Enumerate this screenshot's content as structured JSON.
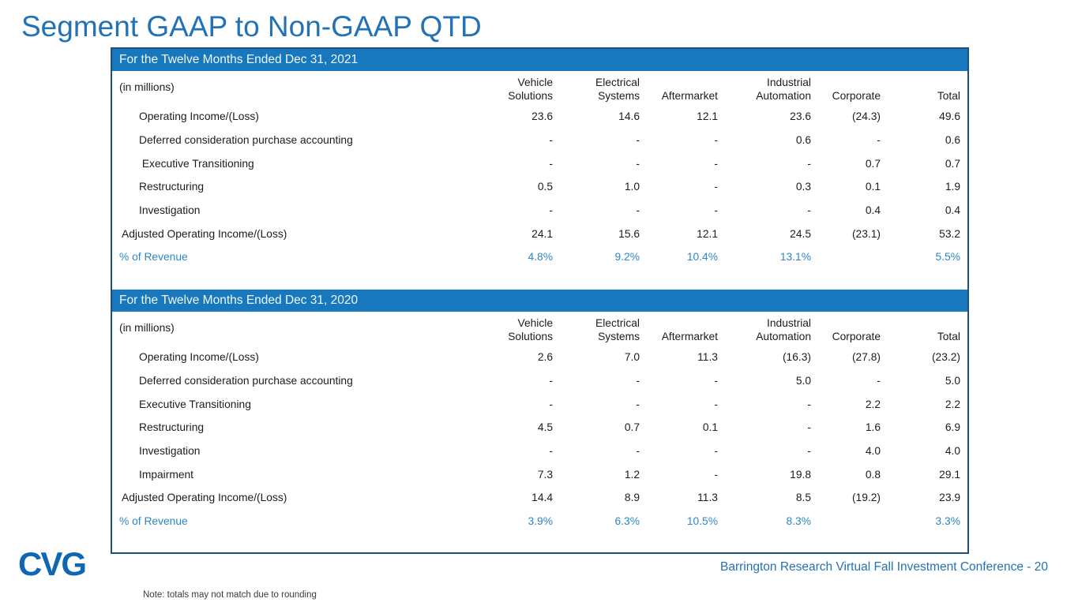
{
  "title": "Segment GAAP to Non-GAAP QTD",
  "logo_text": "CVG",
  "footer": "Barrington Research Virtual Fall Investment Conference - 20",
  "note": "Note: totals may not match due to rounding",
  "colors": {
    "bar_blue": "#1878be",
    "border_navy": "#1f4e79",
    "accent_blue": "#2272b5",
    "percent_blue": "#2e86c6",
    "logo_blue": "#0e67b2"
  },
  "tables": [
    {
      "period": "For the Twelve Months Ended Dec 31, 2021",
      "units_label": "(in millions)",
      "columns": [
        "Vehicle\nSolutions",
        "Electrical\nSystems",
        "Aftermarket",
        "Industrial\nAutomation",
        "Corporate",
        "Total"
      ],
      "rows": [
        {
          "label": "Operating Income/(Loss)",
          "type": "item",
          "values": [
            "23.6",
            "14.6",
            "12.1",
            "23.6",
            "(24.3)",
            "49.6"
          ]
        },
        {
          "label": "Deferred consideration purchase accounting",
          "type": "item",
          "values": [
            "-",
            "-",
            "-",
            "0.6",
            "-",
            "0.6"
          ]
        },
        {
          "label": " Executive Transitioning",
          "type": "item",
          "values": [
            "-",
            "-",
            "-",
            "-",
            "0.7",
            "0.7"
          ]
        },
        {
          "label": "Restructuring",
          "type": "item",
          "values": [
            "0.5",
            "1.0",
            "-",
            "0.3",
            "0.1",
            "1.9"
          ]
        },
        {
          "label": "Investigation",
          "type": "item",
          "values": [
            "-",
            "-",
            "-",
            "-",
            "0.4",
            "0.4"
          ]
        },
        {
          "label": "Adjusted Operating Income/(Loss)",
          "type": "total",
          "values": [
            "24.1",
            "15.6",
            "12.1",
            "24.5",
            "(23.1)",
            "53.2"
          ]
        },
        {
          "label": "% of Revenue",
          "type": "percent",
          "values": [
            "4.8%",
            "9.2%",
            "10.4%",
            "13.1%",
            "",
            "5.5%"
          ]
        }
      ]
    },
    {
      "period": "For the Twelve Months Ended Dec 31, 2020",
      "units_label": "(in millions)",
      "columns": [
        "Vehicle\nSolutions",
        "Electrical\nSystems",
        "Aftermarket",
        "Industrial\nAutomation",
        "Corporate",
        "Total"
      ],
      "rows": [
        {
          "label": "Operating Income/(Loss)",
          "type": "item",
          "values": [
            "2.6",
            "7.0",
            "11.3",
            "(16.3)",
            "(27.8)",
            "(23.2)"
          ]
        },
        {
          "label": "Deferred consideration purchase accounting",
          "type": "item",
          "values": [
            "-",
            "-",
            "-",
            "5.0",
            "-",
            "5.0"
          ]
        },
        {
          "label": "Executive Transitioning",
          "type": "item",
          "values": [
            "-",
            "-",
            "-",
            "-",
            "2.2",
            "2.2"
          ]
        },
        {
          "label": "Restructuring",
          "type": "item",
          "values": [
            "4.5",
            "0.7",
            "0.1",
            "-",
            "1.6",
            "6.9"
          ]
        },
        {
          "label": "Investigation",
          "type": "item",
          "values": [
            "-",
            "-",
            "-",
            "-",
            "4.0",
            "4.0"
          ]
        },
        {
          "label": "Impairment",
          "type": "item",
          "values": [
            "7.3",
            "1.2",
            "-",
            "19.8",
            "0.8",
            "29.1"
          ]
        },
        {
          "label": "Adjusted Operating Income/(Loss)",
          "type": "total",
          "values": [
            "14.4",
            "8.9",
            "11.3",
            "8.5",
            "(19.2)",
            "23.9"
          ]
        },
        {
          "label": "% of Revenue",
          "type": "percent",
          "values": [
            "3.9%",
            "6.3%",
            "10.5%",
            "8.3%",
            "",
            "3.3%"
          ]
        }
      ]
    }
  ]
}
